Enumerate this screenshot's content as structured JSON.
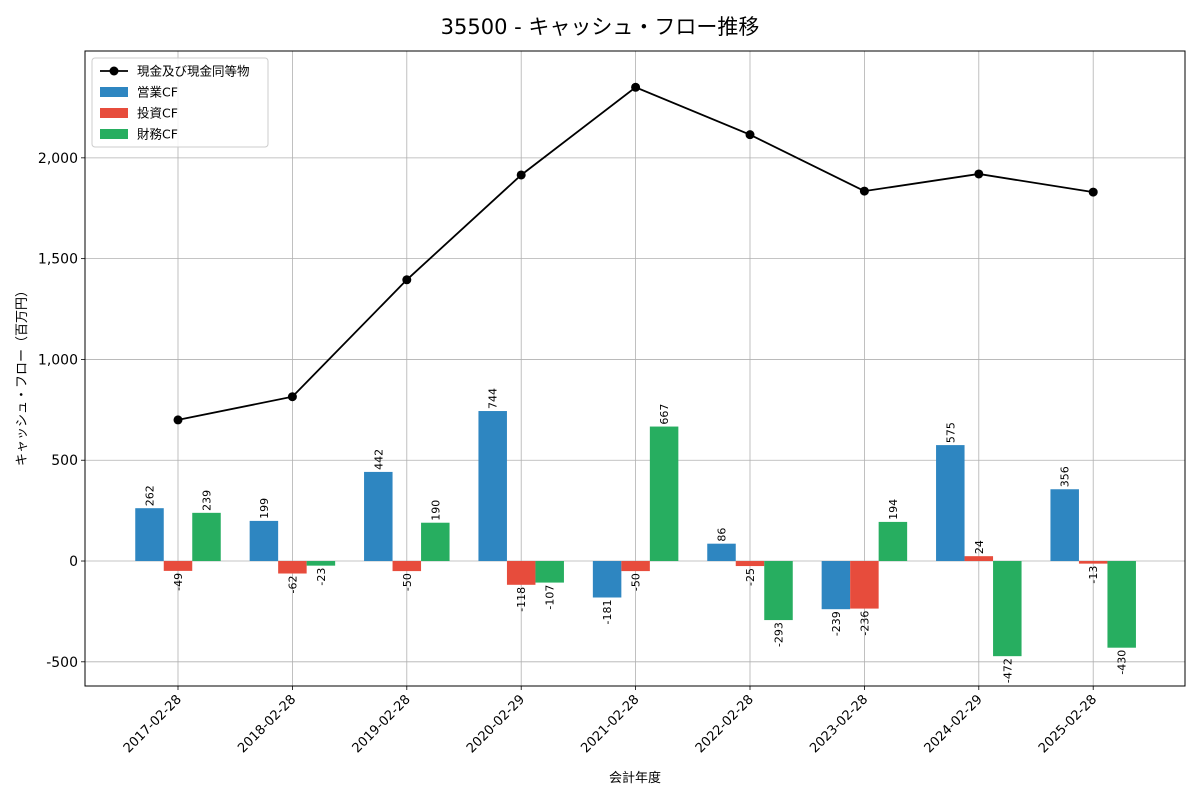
{
  "chart_data": {
    "type": "bar",
    "title": "35500 - キャッシュ・フロー推移",
    "xlabel": "会計年度",
    "ylabel": "キャッシュ・フロー（百万円）",
    "ylim": [
      -620,
      2530
    ],
    "yticks": [
      -500,
      0,
      500,
      1000,
      1500,
      2000
    ],
    "ytick_labels": [
      "-500",
      "0",
      "500",
      "1,000",
      "1,500",
      "2,000"
    ],
    "grid": true,
    "legend_position": "top-left",
    "categories": [
      "2017-02-28",
      "2018-02-28",
      "2019-02-28",
      "2020-02-29",
      "2021-02-28",
      "2022-02-28",
      "2023-02-28",
      "2024-02-29",
      "2025-02-28"
    ],
    "series": [
      {
        "name": "営業CF",
        "kind": "bar",
        "color": "#2e86c1",
        "values": [
          262,
          199,
          442,
          744,
          -181,
          86,
          -239,
          575,
          356
        ]
      },
      {
        "name": "投資CF",
        "kind": "bar",
        "color": "#e74c3c",
        "values": [
          -49,
          -62,
          -50,
          -118,
          -50,
          -25,
          -236,
          24,
          -13
        ]
      },
      {
        "name": "財務CF",
        "kind": "bar",
        "color": "#27ae60",
        "values": [
          239,
          -23,
          190,
          -107,
          667,
          -293,
          194,
          -472,
          -430
        ]
      },
      {
        "name": "現金及び現金同等物",
        "kind": "line",
        "color": "#000000",
        "values": [
          700,
          815,
          1395,
          1915,
          2350,
          2115,
          1835,
          1920,
          1830
        ]
      }
    ],
    "legend_order": [
      "現金及び現金同等物",
      "営業CF",
      "投資CF",
      "財務CF"
    ]
  }
}
